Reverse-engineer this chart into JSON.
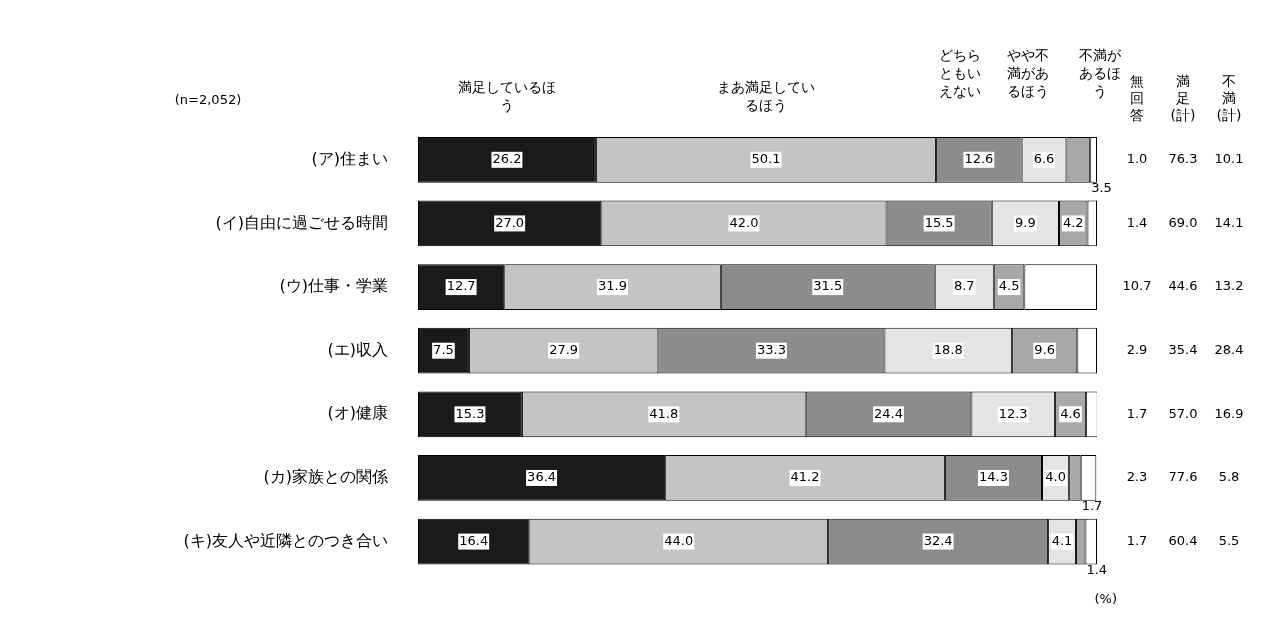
{
  "chart_data": {
    "type": "bar",
    "orientation": "horizontal",
    "stacked": true,
    "tick_labels": "y",
    "xlim": [
      0,
      100
    ],
    "grid": false,
    "legend": false,
    "categories": [
      "(ア)住まい",
      "(イ)自由に過ごせる時間",
      "(ウ)仕事・学業",
      "(エ)収入",
      "(オ)健康",
      "(カ)家族との関係",
      "(キ)友人や近隣とのつき合い"
    ],
    "series": [
      {
        "name": "満足しているほう",
        "color": "#1a1a1a",
        "values": [
          26.2,
          27.0,
          12.7,
          7.5,
          15.3,
          36.4,
          16.4
        ],
        "value_labels": [
          "26.2",
          "27.0",
          "12.7",
          "7.5",
          "15.3",
          "36.4",
          "16.4"
        ]
      },
      {
        "name": "まあ満足しているほう",
        "color": "#c4c4c4",
        "values": [
          50.1,
          42.0,
          31.9,
          27.9,
          41.8,
          41.2,
          44.0
        ],
        "value_labels": [
          "50.1",
          "42.0",
          "31.9",
          "27.9",
          "41.8",
          "41.2",
          "44.0"
        ]
      },
      {
        "name": "どちらともいえない",
        "color": "#8c8c8c",
        "values": [
          12.6,
          15.5,
          31.5,
          33.3,
          24.4,
          14.3,
          32.4
        ],
        "value_labels": [
          "12.6",
          "15.5",
          "31.5",
          "33.3",
          "24.4",
          "14.3",
          "32.4"
        ]
      },
      {
        "name": "やや不満があるほう",
        "color": "#e4e4e4",
        "values": [
          6.6,
          9.9,
          8.7,
          18.8,
          12.3,
          4.0,
          4.1
        ],
        "value_labels": [
          "6.6",
          "9.9",
          "8.7",
          "18.8",
          "12.3",
          "4.0",
          "4.1"
        ]
      },
      {
        "name": "不満があるほう",
        "color": "#a8a8a8",
        "values": [
          3.5,
          4.2,
          4.5,
          9.6,
          4.6,
          1.7,
          1.4
        ],
        "value_labels": [
          "3.5",
          "4.2",
          "4.5",
          "9.6",
          "4.6",
          "1.7",
          "1.4"
        ]
      },
      {
        "name": "無回答",
        "color": "#ffffff",
        "values": [
          1.0,
          1.4,
          10.7,
          2.9,
          1.7,
          2.3,
          1.7
        ],
        "value_labels": [
          "1.0",
          "1.4",
          "10.7",
          "2.9",
          "1.7",
          "2.3",
          "1.7"
        ]
      }
    ],
    "annotations": [
      "(n=2,052)",
      "満足(計)",
      "76.3",
      "69.0",
      "44.6",
      "35.4",
      "57.0",
      "77.6",
      "60.4",
      "不満(計)",
      "10.1",
      "14.1",
      "13.2",
      "28.4",
      "16.9",
      "5.8",
      "5.5",
      "(%)"
    ]
  }
}
